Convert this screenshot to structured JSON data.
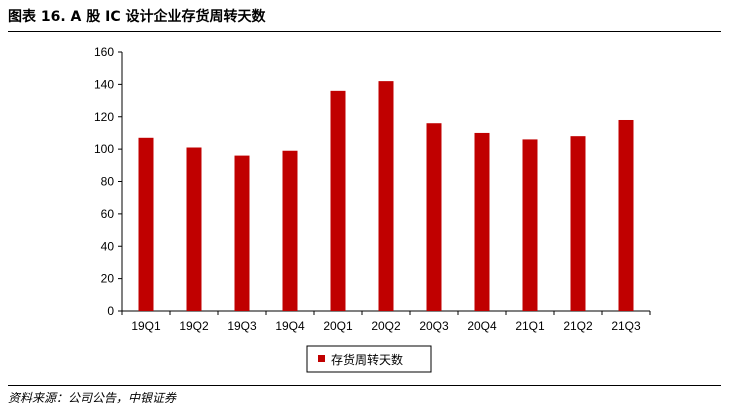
{
  "figure": {
    "title": "图表 16. A 股 IC 设计企业存货周转天数",
    "source": "资料来源：公司公告，中银证券"
  },
  "colors": {
    "bar": "#c00000",
    "axis": "#000000"
  },
  "chart_data": {
    "type": "bar",
    "categories": [
      "19Q1",
      "19Q2",
      "19Q3",
      "19Q4",
      "20Q1",
      "20Q2",
      "20Q3",
      "20Q4",
      "21Q1",
      "21Q2",
      "21Q3"
    ],
    "series": [
      {
        "name": "存货周转天数",
        "values": [
          107,
          101,
          96,
          99,
          136,
          142,
          116,
          110,
          106,
          108,
          118
        ]
      }
    ],
    "ylim": [
      0,
      160
    ],
    "yticks": [
      0,
      20,
      40,
      60,
      80,
      100,
      120,
      140,
      160
    ],
    "grid": false,
    "legend_position": "bottom"
  }
}
